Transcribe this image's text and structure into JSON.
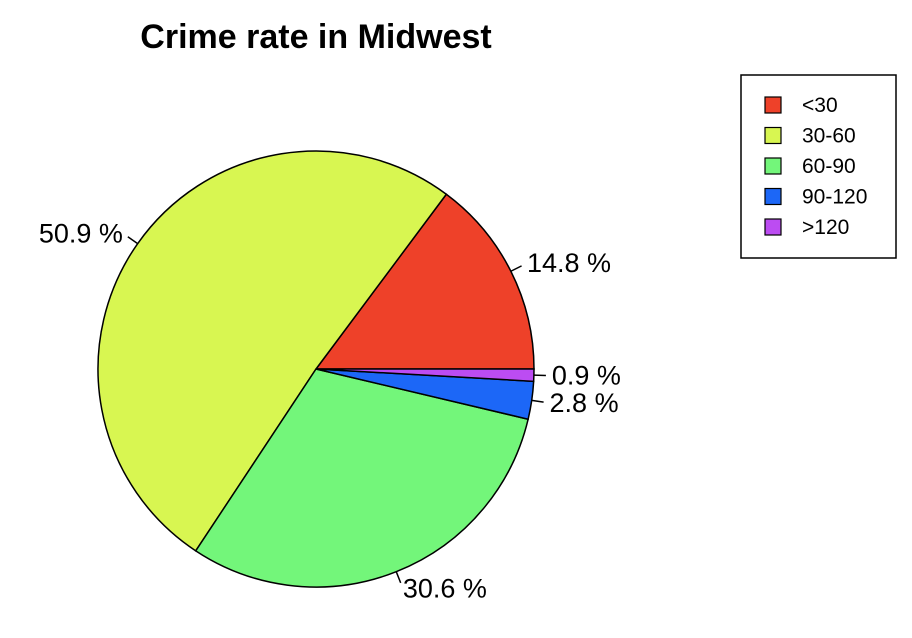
{
  "chart_data": {
    "type": "pie",
    "title": "Crime rate in Midwest",
    "categories": [
      "<30",
      "30-60",
      "60-90",
      "90-120",
      ">120"
    ],
    "values": [
      14.8,
      50.9,
      30.6,
      2.8,
      0.9
    ],
    "labels": [
      "14.8 %",
      "50.9 %",
      "30.6 %",
      "2.8 %",
      "0.9 %"
    ],
    "colors": [
      "#EE4129",
      "#D8F651",
      "#73F67A",
      "#1C67F7",
      "#BC4CF2"
    ],
    "direction": "counterclockwise",
    "legend": {
      "placement": "top-right",
      "items": [
        {
          "label": "<30",
          "color": "#EE4129"
        },
        {
          "label": "30-60",
          "color": "#D8F651"
        },
        {
          "label": "60-90",
          "color": "#73F67A"
        },
        {
          "label": "90-120",
          "color": "#1C67F7"
        },
        {
          "label": ">120",
          "color": "#BC4CF2"
        }
      ]
    }
  }
}
